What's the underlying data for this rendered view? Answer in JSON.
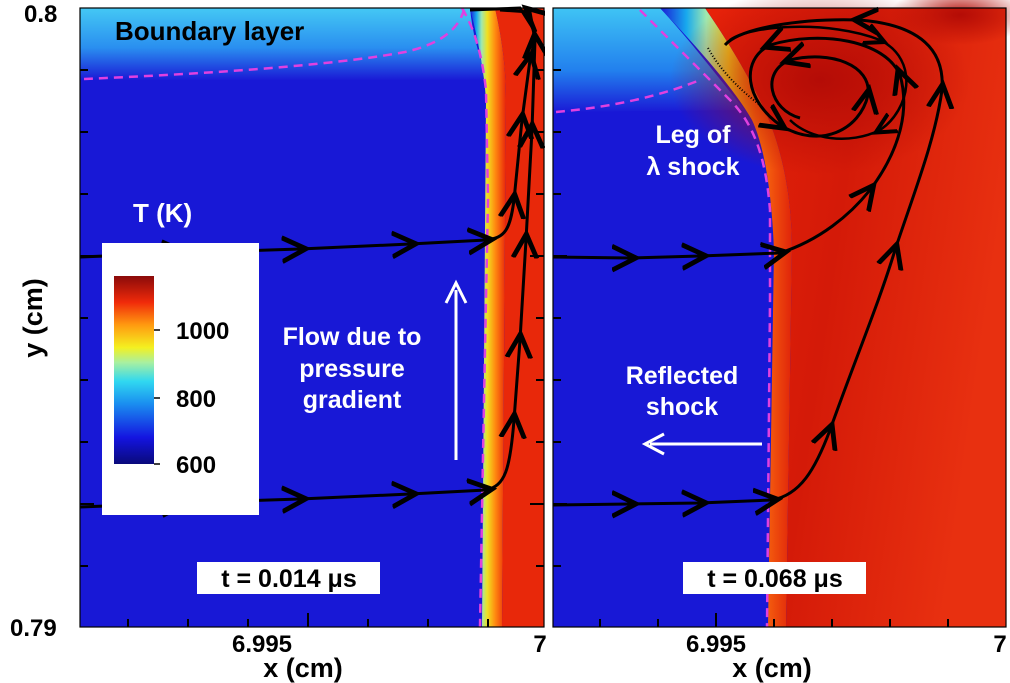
{
  "chart_data": {
    "type": "heatmap",
    "colorbar": {
      "title": "T (K)",
      "ticks": [
        "600",
        "800",
        "1000"
      ],
      "range": [
        600,
        1100
      ]
    },
    "ylabel": "y (cm)",
    "ylim": [
      0.79,
      0.8
    ],
    "y_tick_labels": [
      "0.79",
      "0.8"
    ],
    "panels": [
      {
        "xlabel": "x (cm)",
        "xlim": [
          6.9918,
          7.0
        ],
        "x_tick_labels": [
          "6.995",
          "7"
        ],
        "x_tick_values": [
          6.995,
          7.0
        ],
        "time_label": "t = 0.014 μs",
        "annotations": [
          "Boundary layer",
          "Flow due to",
          "pressure",
          "gradient"
        ],
        "shock_x": 6.9991,
        "boundary_layer_top_y": 0.7977,
        "pre_shock_T": 650,
        "post_shock_T": 1000
      },
      {
        "xlabel": "x (cm)",
        "xlim": [
          6.9918,
          7.0
        ],
        "x_tick_labels": [
          "6.995",
          "7"
        ],
        "x_tick_values": [
          6.995,
          7.0
        ],
        "time_label": "t = 0.068 μs",
        "annotations": [
          "Leg of",
          "λ shock",
          "Reflected",
          "shock"
        ],
        "shock_x": 6.9962,
        "pre_shock_T": 650,
        "post_shock_T": 1040
      }
    ]
  },
  "colors": {
    "pre_shock": "#1414d2",
    "post_shock": "#e52a0a",
    "boundary_layer": "#3bb5f2",
    "shock_contour": "#e040e0",
    "streamline": "#000000",
    "arrow": "#ffffff"
  }
}
